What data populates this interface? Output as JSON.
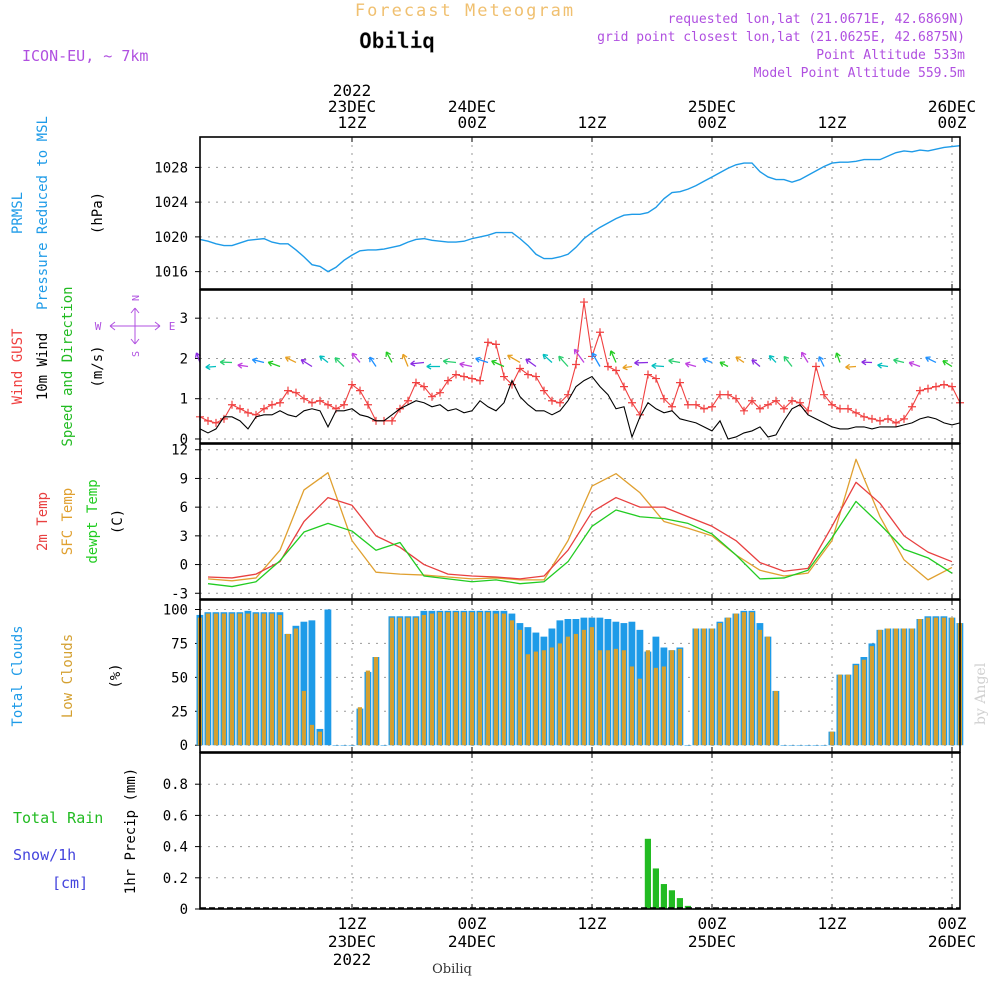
{
  "header": {
    "title": "Forecast Meteogram",
    "location": "Obiliq",
    "model": "ICON-EU, ~ 7km",
    "requested": "requested lon,lat (21.0671E, 42.6869N)",
    "grid_point": "grid point closest lon,lat (21.0625E, 42.6875N)",
    "point_altitude": "Point Altitude 533m",
    "model_altitude": "Model Point Altitude 559.5m",
    "watermark": "by Angel",
    "footer_location": "Obiliq"
  },
  "colors": {
    "pressure": "#1e9be8",
    "gust": "#f04040",
    "wind": "#000000",
    "direction": "#22bb22",
    "temp2m": "#e84040",
    "sfc": "#e0a030",
    "dewpt": "#22cc22",
    "total_cloud": "#1e9be8",
    "low_cloud": "#d4a030",
    "rain": "#22bb22",
    "snow": "#4444dd",
    "compass": "#b050e0",
    "header": "#b050e0",
    "title": "#f0c070"
  },
  "time_axis": {
    "hours_start": -7,
    "hours_end": 88,
    "top_labels": [
      {
        "hour": 12,
        "lines": [
          "2022",
          "23DEC",
          "12Z"
        ]
      },
      {
        "hour": 27,
        "lines": [
          "24DEC",
          "00Z"
        ]
      },
      {
        "hour": 42,
        "lines": [
          "12Z"
        ]
      },
      {
        "hour": 57,
        "lines": [
          "25DEC",
          "00Z"
        ]
      },
      {
        "hour": 72,
        "lines": [
          "12Z"
        ]
      },
      {
        "hour": 87,
        "lines": [
          "26DEC",
          "00Z"
        ]
      }
    ],
    "bottom_labels": [
      {
        "hour": 12,
        "lines": [
          "12Z",
          "23DEC",
          "2022"
        ]
      },
      {
        "hour": 27,
        "lines": [
          "00Z",
          "24DEC"
        ]
      },
      {
        "hour": 42,
        "lines": [
          "12Z"
        ]
      },
      {
        "hour": 57,
        "lines": [
          "00Z",
          "25DEC"
        ]
      },
      {
        "hour": 72,
        "lines": [
          "12Z"
        ]
      },
      {
        "hour": 87,
        "lines": [
          "00Z",
          "26DEC"
        ]
      }
    ]
  },
  "chart_data": [
    {
      "name": "pressure",
      "type": "line",
      "ylabels": [
        {
          "text": "PRMSL",
          "color": "#1e9be8"
        },
        {
          "text": "Pressure Reduced to MSL",
          "color": "#1e9be8"
        },
        {
          "text": "(hPa)",
          "color": "#000000"
        }
      ],
      "ylim": [
        1014,
        1031.5
      ],
      "yticks": [
        1016,
        1020,
        1024,
        1028
      ],
      "x": [
        -7,
        -6,
        -5,
        -4,
        -3,
        -2,
        -1,
        0,
        1,
        2,
        3,
        4,
        5,
        6,
        7,
        8,
        9,
        10,
        11,
        12,
        13,
        14,
        15,
        16,
        17,
        18,
        19,
        20,
        21,
        22,
        23,
        24,
        25,
        26,
        27,
        28,
        29,
        30,
        31,
        32,
        33,
        34,
        35,
        36,
        37,
        38,
        39,
        40,
        41,
        42,
        43,
        44,
        45,
        46,
        47,
        48,
        49,
        50,
        51,
        52,
        53,
        54,
        55,
        56,
        57,
        58,
        59,
        60,
        61,
        62,
        63,
        64,
        65,
        66,
        67,
        68,
        69,
        70,
        71,
        72,
        73,
        74,
        75,
        76,
        77,
        78,
        79,
        80,
        81,
        82,
        83,
        84,
        85,
        86,
        87,
        88
      ],
      "values": [
        1019.7,
        1019.5,
        1019.2,
        1019.0,
        1019.0,
        1019.3,
        1019.6,
        1019.7,
        1019.8,
        1019.4,
        1019.2,
        1019.2,
        1018.5,
        1017.7,
        1016.8,
        1016.6,
        1016.0,
        1016.5,
        1017.3,
        1017.9,
        1018.4,
        1018.5,
        1018.5,
        1018.6,
        1018.8,
        1019.0,
        1019.4,
        1019.7,
        1019.8,
        1019.6,
        1019.5,
        1019.4,
        1019.4,
        1019.5,
        1019.8,
        1020.0,
        1020.2,
        1020.5,
        1020.5,
        1020.5,
        1019.8,
        1019.0,
        1018.0,
        1017.5,
        1017.5,
        1017.7,
        1018.0,
        1018.8,
        1019.8,
        1020.5,
        1021.1,
        1021.6,
        1022.1,
        1022.5,
        1022.6,
        1022.6,
        1022.8,
        1023.4,
        1024.4,
        1025.1,
        1025.2,
        1025.5,
        1025.9,
        1026.4,
        1026.9,
        1027.4,
        1027.9,
        1028.3,
        1028.5,
        1028.5,
        1027.5,
        1026.9,
        1026.6,
        1026.6,
        1026.3,
        1026.6,
        1027.1,
        1027.6,
        1028.1,
        1028.5,
        1028.6,
        1028.6,
        1028.7,
        1028.9,
        1028.9,
        1028.9,
        1029.3,
        1029.7,
        1029.9,
        1029.8,
        1030.0,
        1029.9,
        1030.1,
        1030.3,
        1030.4,
        1030.5
      ]
    },
    {
      "name": "wind",
      "type": "line",
      "ylabels": [
        {
          "text": "Wind GUST",
          "color": "#f04040"
        },
        {
          "text": "10m Wind",
          "color": "#000000"
        },
        {
          "text": "Speed and Direction",
          "color": "#22bb22"
        },
        {
          "text": "(m/s)",
          "color": "#000000"
        }
      ],
      "compass": {
        "north": "N",
        "south": "S",
        "west": "W",
        "east": "E"
      },
      "ylim": [
        -0.1,
        3.7
      ],
      "yticks": [
        0,
        1,
        2,
        3
      ],
      "x": [
        -7,
        -6,
        -5,
        -4,
        -3,
        -2,
        -1,
        0,
        1,
        2,
        3,
        4,
        5,
        6,
        7,
        8,
        9,
        10,
        11,
        12,
        13,
        14,
        15,
        16,
        17,
        18,
        19,
        20,
        21,
        22,
        23,
        24,
        25,
        26,
        27,
        28,
        29,
        30,
        31,
        32,
        33,
        34,
        35,
        36,
        37,
        38,
        39,
        40,
        41,
        42,
        43,
        44,
        45,
        46,
        47,
        48,
        49,
        50,
        51,
        52,
        53,
        54,
        55,
        56,
        57,
        58,
        59,
        60,
        61,
        62,
        63,
        64,
        65,
        66,
        67,
        68,
        69,
        70,
        71,
        72,
        73,
        74,
        75,
        76,
        77,
        78,
        79,
        80,
        81,
        82,
        83,
        84,
        85,
        86,
        87,
        88
      ],
      "series": [
        {
          "name": "Wind GUST",
          "marker": "+",
          "values": [
            0.55,
            0.45,
            0.4,
            0.5,
            0.85,
            0.75,
            0.65,
            0.6,
            0.75,
            0.85,
            0.9,
            1.2,
            1.15,
            1.0,
            0.9,
            0.95,
            0.85,
            0.75,
            0.85,
            1.35,
            1.2,
            0.85,
            0.45,
            0.45,
            0.45,
            0.75,
            0.95,
            1.4,
            1.3,
            1.05,
            1.15,
            1.45,
            1.6,
            1.55,
            1.5,
            1.45,
            2.4,
            2.35,
            1.55,
            1.35,
            1.75,
            1.6,
            1.55,
            1.2,
            0.95,
            0.9,
            1.1,
            1.85,
            3.4,
            2.05,
            2.65,
            1.8,
            1.7,
            1.3,
            0.9,
            0.6,
            1.6,
            1.5,
            1.0,
            0.8,
            1.4,
            0.85,
            0.85,
            0.75,
            0.8,
            1.1,
            1.1,
            1.0,
            0.7,
            0.95,
            0.75,
            0.85,
            0.95,
            0.75,
            0.95,
            0.9,
            0.7,
            1.8,
            1.1,
            0.85,
            0.75,
            0.75,
            0.65,
            0.55,
            0.5,
            0.45,
            0.5,
            0.4,
            0.5,
            0.8,
            1.2,
            1.25,
            1.3,
            1.35,
            1.3,
            0.9
          ]
        },
        {
          "name": "10m Wind",
          "values": [
            0.25,
            0.15,
            0.25,
            0.55,
            0.55,
            0.45,
            0.25,
            0.55,
            0.6,
            0.6,
            0.7,
            0.6,
            0.55,
            0.7,
            0.75,
            0.7,
            0.3,
            0.7,
            0.7,
            0.75,
            0.6,
            0.55,
            0.45,
            0.45,
            0.6,
            0.75,
            0.85,
            0.95,
            0.9,
            0.8,
            0.85,
            0.7,
            0.75,
            0.65,
            0.7,
            0.95,
            0.8,
            0.7,
            0.9,
            1.45,
            1.05,
            0.85,
            0.7,
            0.7,
            0.6,
            0.7,
            0.95,
            1.3,
            1.45,
            1.55,
            1.3,
            1.1,
            0.75,
            0.8,
            0.05,
            0.55,
            0.9,
            0.75,
            0.65,
            0.7,
            0.5,
            0.45,
            0.4,
            0.3,
            0.2,
            0.45,
            0.0,
            0.05,
            0.15,
            0.2,
            0.3,
            0.05,
            0.1,
            0.45,
            0.75,
            0.85,
            0.6,
            0.5,
            0.4,
            0.3,
            0.25,
            0.25,
            0.3,
            0.3,
            0.25,
            0.3,
            0.3,
            0.3,
            0.35,
            0.4,
            0.5,
            0.55,
            0.5,
            0.4,
            0.35,
            0.4
          ]
        }
      ]
    },
    {
      "name": "temperature",
      "type": "line",
      "ylabels": [
        {
          "text": "2m Temp",
          "color": "#e84040"
        },
        {
          "text": "SFC Temp",
          "color": "#e0a030"
        },
        {
          "text": "dewpt Temp",
          "color": "#22cc22"
        },
        {
          "text": "(C)",
          "color": "#000000"
        }
      ],
      "ylim": [
        -3.6,
        12.6
      ],
      "yticks": [
        -3,
        0,
        3,
        6,
        9,
        12
      ],
      "x": [
        -6,
        -3,
        0,
        3,
        6,
        9,
        12,
        15,
        18,
        21,
        24,
        27,
        30,
        33,
        36,
        39,
        42,
        45,
        48,
        51,
        54,
        57,
        60,
        63,
        66,
        69,
        72,
        75,
        78,
        81,
        84,
        87
      ],
      "series": [
        {
          "name": "2m Temp",
          "values": [
            -1.3,
            -1.4,
            -1.0,
            0.3,
            4.5,
            7.0,
            6.2,
            3.0,
            1.8,
            0.0,
            -1.0,
            -1.2,
            -1.3,
            -1.5,
            -1.2,
            1.5,
            5.5,
            7.0,
            6.0,
            6.0,
            5.0,
            4.0,
            2.5,
            0.2,
            -0.7,
            -0.4,
            4.0,
            8.6,
            6.4,
            3.0,
            1.3,
            0.3
          ]
        },
        {
          "name": "SFC Temp",
          "values": [
            -1.5,
            -1.7,
            -1.4,
            1.5,
            7.8,
            9.6,
            2.5,
            -0.8,
            -1.0,
            -1.1,
            -1.3,
            -1.5,
            -1.4,
            -1.6,
            -1.6,
            2.5,
            8.2,
            9.5,
            7.5,
            4.5,
            3.8,
            3.0,
            1.0,
            -0.6,
            -1.2,
            -0.9,
            2.5,
            11.0,
            5.0,
            0.5,
            -1.6,
            -0.3
          ]
        },
        {
          "name": "dewpt Temp",
          "values": [
            -2.0,
            -2.3,
            -1.8,
            0.4,
            3.4,
            4.3,
            3.5,
            1.5,
            2.3,
            -1.2,
            -1.5,
            -1.8,
            -1.6,
            -2.0,
            -1.8,
            0.3,
            4.0,
            5.7,
            5.0,
            4.8,
            4.3,
            3.2,
            1.0,
            -1.5,
            -1.4,
            -0.6,
            2.8,
            6.6,
            4.2,
            1.6,
            0.7,
            -0.9
          ]
        }
      ]
    },
    {
      "name": "clouds",
      "type": "bar",
      "ylabels": [
        {
          "text": "Total Clouds",
          "color": "#1e9be8"
        },
        {
          "text": "Low Clouds",
          "color": "#d4a030"
        },
        {
          "text": "(%)",
          "color": "#000000"
        }
      ],
      "ylim": [
        -5,
        107
      ],
      "yticks": [
        0,
        25,
        50,
        75,
        100
      ],
      "x": [
        -7,
        -6,
        -5,
        -4,
        -3,
        -2,
        -1,
        0,
        1,
        2,
        3,
        4,
        5,
        6,
        7,
        8,
        9,
        10,
        11,
        12,
        13,
        14,
        15,
        16,
        17,
        18,
        19,
        20,
        21,
        22,
        23,
        24,
        25,
        26,
        27,
        28,
        29,
        30,
        31,
        32,
        33,
        34,
        35,
        36,
        37,
        38,
        39,
        40,
        41,
        42,
        43,
        44,
        45,
        46,
        47,
        48,
        49,
        50,
        51,
        52,
        53,
        54,
        55,
        56,
        57,
        58,
        59,
        60,
        61,
        62,
        63,
        64,
        65,
        66,
        67,
        68,
        69,
        70,
        71,
        72,
        73,
        74,
        75,
        76,
        77,
        78,
        79,
        80,
        81,
        82,
        83,
        84,
        85,
        86,
        87,
        88
      ],
      "series": [
        {
          "name": "Total Clouds",
          "values": [
            96,
            98,
            98,
            98,
            98,
            98,
            99,
            98,
            98,
            98,
            98,
            82,
            88,
            91,
            92,
            12,
            100,
            0,
            0,
            0,
            27,
            54,
            65,
            0,
            95,
            95,
            95,
            95,
            99,
            99,
            99,
            99,
            99,
            99,
            99,
            99,
            99,
            99,
            99,
            97,
            90,
            87,
            83,
            80,
            86,
            92,
            93,
            93,
            94,
            94,
            94,
            93,
            91,
            90,
            91,
            85,
            69,
            80,
            72,
            70,
            72,
            0,
            86,
            86,
            86,
            91,
            94,
            97,
            99,
            99,
            90,
            80,
            40,
            0,
            0,
            0,
            0,
            0,
            0,
            10,
            52,
            52,
            60,
            65,
            75,
            85,
            86,
            86,
            86,
            86,
            93,
            95,
            95,
            95,
            94,
            90
          ]
        },
        {
          "name": "Low Clouds",
          "values": [
            94,
            97,
            97,
            97,
            97,
            97,
            97,
            97,
            97,
            97,
            96,
            82,
            86,
            40,
            15,
            10,
            0,
            0,
            0,
            0,
            28,
            55,
            65,
            0,
            94,
            94,
            94,
            94,
            96,
            97,
            98,
            98,
            98,
            98,
            98,
            98,
            98,
            97,
            97,
            92,
            85,
            67,
            69,
            70,
            72,
            75,
            80,
            82,
            85,
            87,
            70,
            70,
            71,
            70,
            58,
            49,
            70,
            57,
            58,
            70,
            71,
            0,
            86,
            86,
            86,
            90,
            94,
            97,
            98,
            98,
            85,
            80,
            40,
            0,
            0,
            0,
            0,
            0,
            0,
            10,
            52,
            52,
            59,
            63,
            73,
            85,
            86,
            86,
            86,
            86,
            93,
            94,
            94,
            94,
            94,
            90
          ]
        }
      ]
    },
    {
      "name": "precipitation",
      "type": "bar",
      "ylabels": [
        {
          "text": "1hr Precip (mm)",
          "color": "#000000"
        }
      ],
      "legend": [
        {
          "text": "Total  Rain",
          "color": "#22bb22"
        },
        {
          "text": "Snow/1h",
          "color": "#4444dd"
        },
        {
          "text": "[cm]",
          "color": "#4444dd"
        }
      ],
      "ylim": [
        0,
        1.0
      ],
      "yticks": [
        0,
        0.2,
        0.4,
        0.6,
        0.8
      ],
      "series": [
        {
          "name": "Total Rain",
          "x": [
            49,
            50,
            51,
            52,
            53,
            54,
            55
          ],
          "values": [
            0.45,
            0.26,
            0.16,
            0.12,
            0.07,
            0.02,
            0.0
          ]
        }
      ]
    }
  ]
}
